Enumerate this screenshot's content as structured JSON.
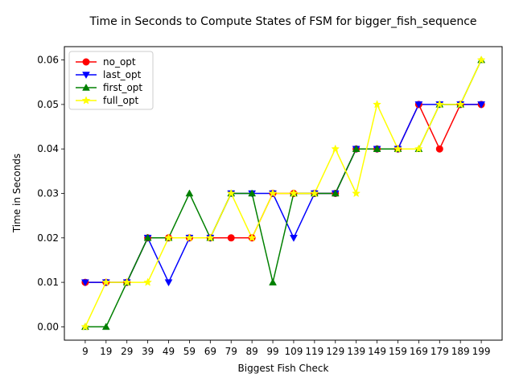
{
  "chart_data": {
    "type": "line",
    "title": "Time in Seconds to Compute States of FSM for bigger_fish_sequence",
    "xlabel": "Biggest Fish Check",
    "ylabel": "Time in Seconds",
    "x": [
      9,
      19,
      29,
      39,
      49,
      59,
      69,
      79,
      89,
      99,
      109,
      119,
      129,
      139,
      149,
      159,
      169,
      179,
      189,
      199
    ],
    "x_tick_labels": [
      "9",
      "19",
      "29",
      "39",
      "49",
      "59",
      "69",
      "79",
      "89",
      "99",
      "109",
      "119",
      "129",
      "139",
      "149",
      "159",
      "169",
      "179",
      "189",
      "199"
    ],
    "ylim": [
      -0.003,
      0.063
    ],
    "y_ticks": [
      0.0,
      0.01,
      0.02,
      0.03,
      0.04,
      0.05,
      0.06
    ],
    "y_tick_labels": [
      "0.00",
      "0.01",
      "0.02",
      "0.03",
      "0.04",
      "0.05",
      "0.06"
    ],
    "grid": false,
    "legend_position": "top-left",
    "series": [
      {
        "name": "no_opt",
        "color": "#ff0000",
        "marker": "circle",
        "values": [
          0.01,
          0.01,
          0.01,
          0.02,
          0.02,
          0.02,
          0.02,
          0.02,
          0.02,
          0.03,
          0.03,
          0.03,
          0.03,
          0.04,
          0.04,
          0.04,
          0.05,
          0.04,
          0.05,
          0.05
        ]
      },
      {
        "name": "last_opt",
        "color": "#0000ff",
        "marker": "triangle-down",
        "values": [
          0.01,
          0.01,
          0.01,
          0.02,
          0.01,
          0.02,
          0.02,
          0.03,
          0.03,
          0.03,
          0.02,
          0.03,
          0.03,
          0.04,
          0.04,
          0.04,
          0.05,
          0.05,
          0.05,
          0.05
        ]
      },
      {
        "name": "first_opt",
        "color": "#008000",
        "marker": "triangle-up",
        "values": [
          0.0,
          0.0,
          0.01,
          0.02,
          0.02,
          0.03,
          0.02,
          0.03,
          0.03,
          0.01,
          0.03,
          0.03,
          0.03,
          0.04,
          0.04,
          0.04,
          0.04,
          0.05,
          0.05,
          0.06
        ]
      },
      {
        "name": "full_opt",
        "color": "#ffff00",
        "marker": "star",
        "values": [
          0.0,
          0.01,
          0.01,
          0.01,
          0.02,
          0.02,
          0.02,
          0.03,
          0.02,
          0.03,
          0.03,
          0.03,
          0.04,
          0.03,
          0.05,
          0.04,
          0.04,
          0.05,
          0.05,
          0.06
        ]
      }
    ]
  }
}
